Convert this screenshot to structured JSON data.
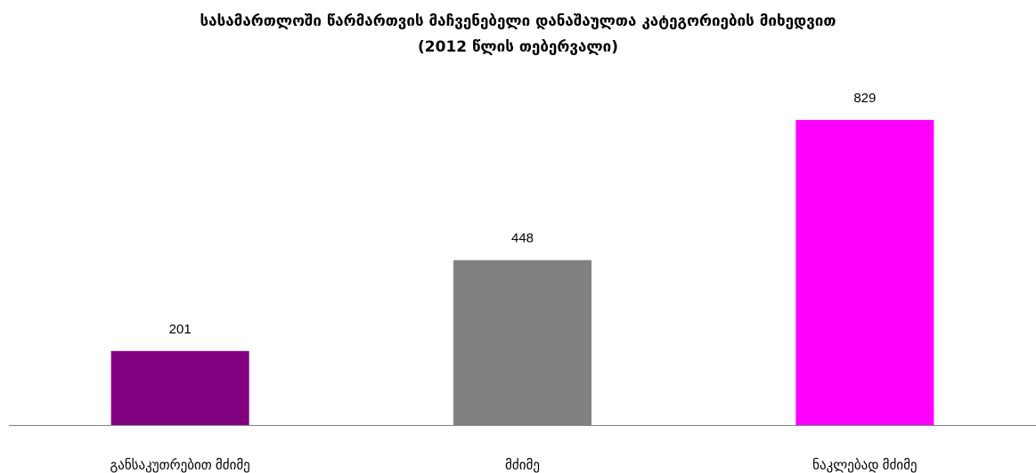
{
  "chart_data": {
    "type": "bar",
    "title": {
      "line1": "სასამართლოში წარმართვის მაჩვენებელი დანაშაულთა კატეგორიების მიხედვით",
      "line2": "(2012 წლის თებერვალი)"
    },
    "categories": [
      "განსაკუთრებით მძიმე",
      "მძიმე",
      "ნაკლებად მძიმე"
    ],
    "values": [
      201,
      448,
      829
    ],
    "colors": [
      "#800080",
      "#808080",
      "#ff00ff"
    ],
    "ylim": [
      0,
      900
    ],
    "grid": false,
    "legend": "none"
  }
}
